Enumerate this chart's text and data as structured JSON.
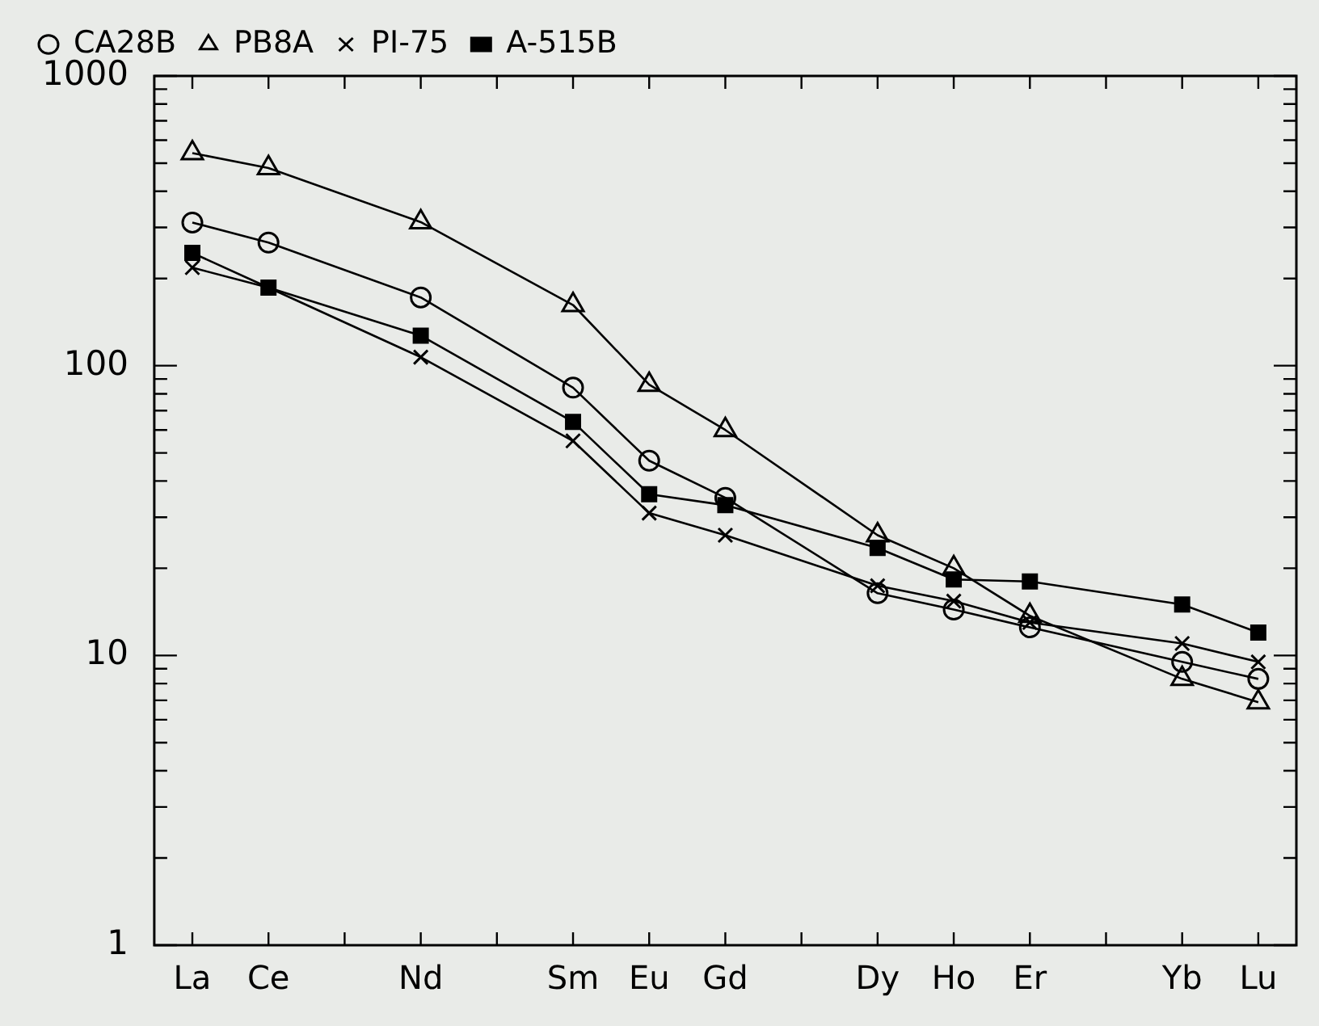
{
  "chart_data": {
    "type": "line",
    "categories": [
      "La",
      "Ce",
      null,
      "Nd",
      null,
      "Sm",
      "Eu",
      "Gd",
      null,
      "Dy",
      "Ho",
      "Er",
      null,
      "Yb",
      "Lu"
    ],
    "series": [
      {
        "name": "CA28B",
        "color": "#000000",
        "marker": "circle",
        "values": [
          312,
          266,
          null,
          172,
          null,
          84,
          47,
          35,
          null,
          16.4,
          14.4,
          12.5,
          null,
          9.5,
          8.3
        ]
      },
      {
        "name": "PB8A",
        "color": "#000000",
        "marker": "triangle",
        "values": [
          542,
          481,
          null,
          313,
          null,
          162,
          86,
          60,
          null,
          26,
          20,
          13.7,
          null,
          8.3,
          6.9
        ]
      },
      {
        "name": "PI-75",
        "color": "#000000",
        "marker": "cross",
        "values": [
          218,
          186,
          null,
          107,
          null,
          55,
          31,
          26,
          null,
          17.4,
          15.4,
          13,
          null,
          11,
          9.5
        ]
      },
      {
        "name": "A-515B",
        "color": "#000000",
        "marker": "square",
        "values": [
          245,
          186,
          null,
          127,
          null,
          64,
          36,
          33,
          null,
          23.5,
          18.3,
          18,
          null,
          15,
          12
        ]
      }
    ],
    "log": "y",
    "ylim": [
      1,
      1000
    ],
    "yticks": [
      1,
      {
        "value": 2,
        "label": null
      },
      {
        "value": 3,
        "label": null
      },
      {
        "value": 4,
        "label": null
      },
      {
        "value": 5,
        "label": null
      },
      {
        "value": 6,
        "label": null
      },
      {
        "value": 7,
        "label": null
      },
      {
        "value": 8,
        "label": null
      },
      {
        "value": 9,
        "label": null
      },
      10,
      {
        "value": 20,
        "label": null
      },
      {
        "value": 30,
        "label": null
      },
      {
        "value": 40,
        "label": null
      },
      {
        "value": 50,
        "label": null
      },
      {
        "value": 60,
        "label": null
      },
      {
        "value": 70,
        "label": null
      },
      {
        "value": 80,
        "label": null
      },
      {
        "value": 90,
        "label": null
      },
      100,
      {
        "value": 200,
        "label": null
      },
      {
        "value": 300,
        "label": null
      },
      {
        "value": 400,
        "label": null
      },
      {
        "value": 500,
        "label": null
      },
      {
        "value": 600,
        "label": null
      },
      {
        "value": 700,
        "label": null
      },
      {
        "value": 800,
        "label": null
      },
      {
        "value": 900,
        "label": null
      },
      1000
    ],
    "grid": false,
    "legend": "top",
    "line_style": "solid"
  }
}
